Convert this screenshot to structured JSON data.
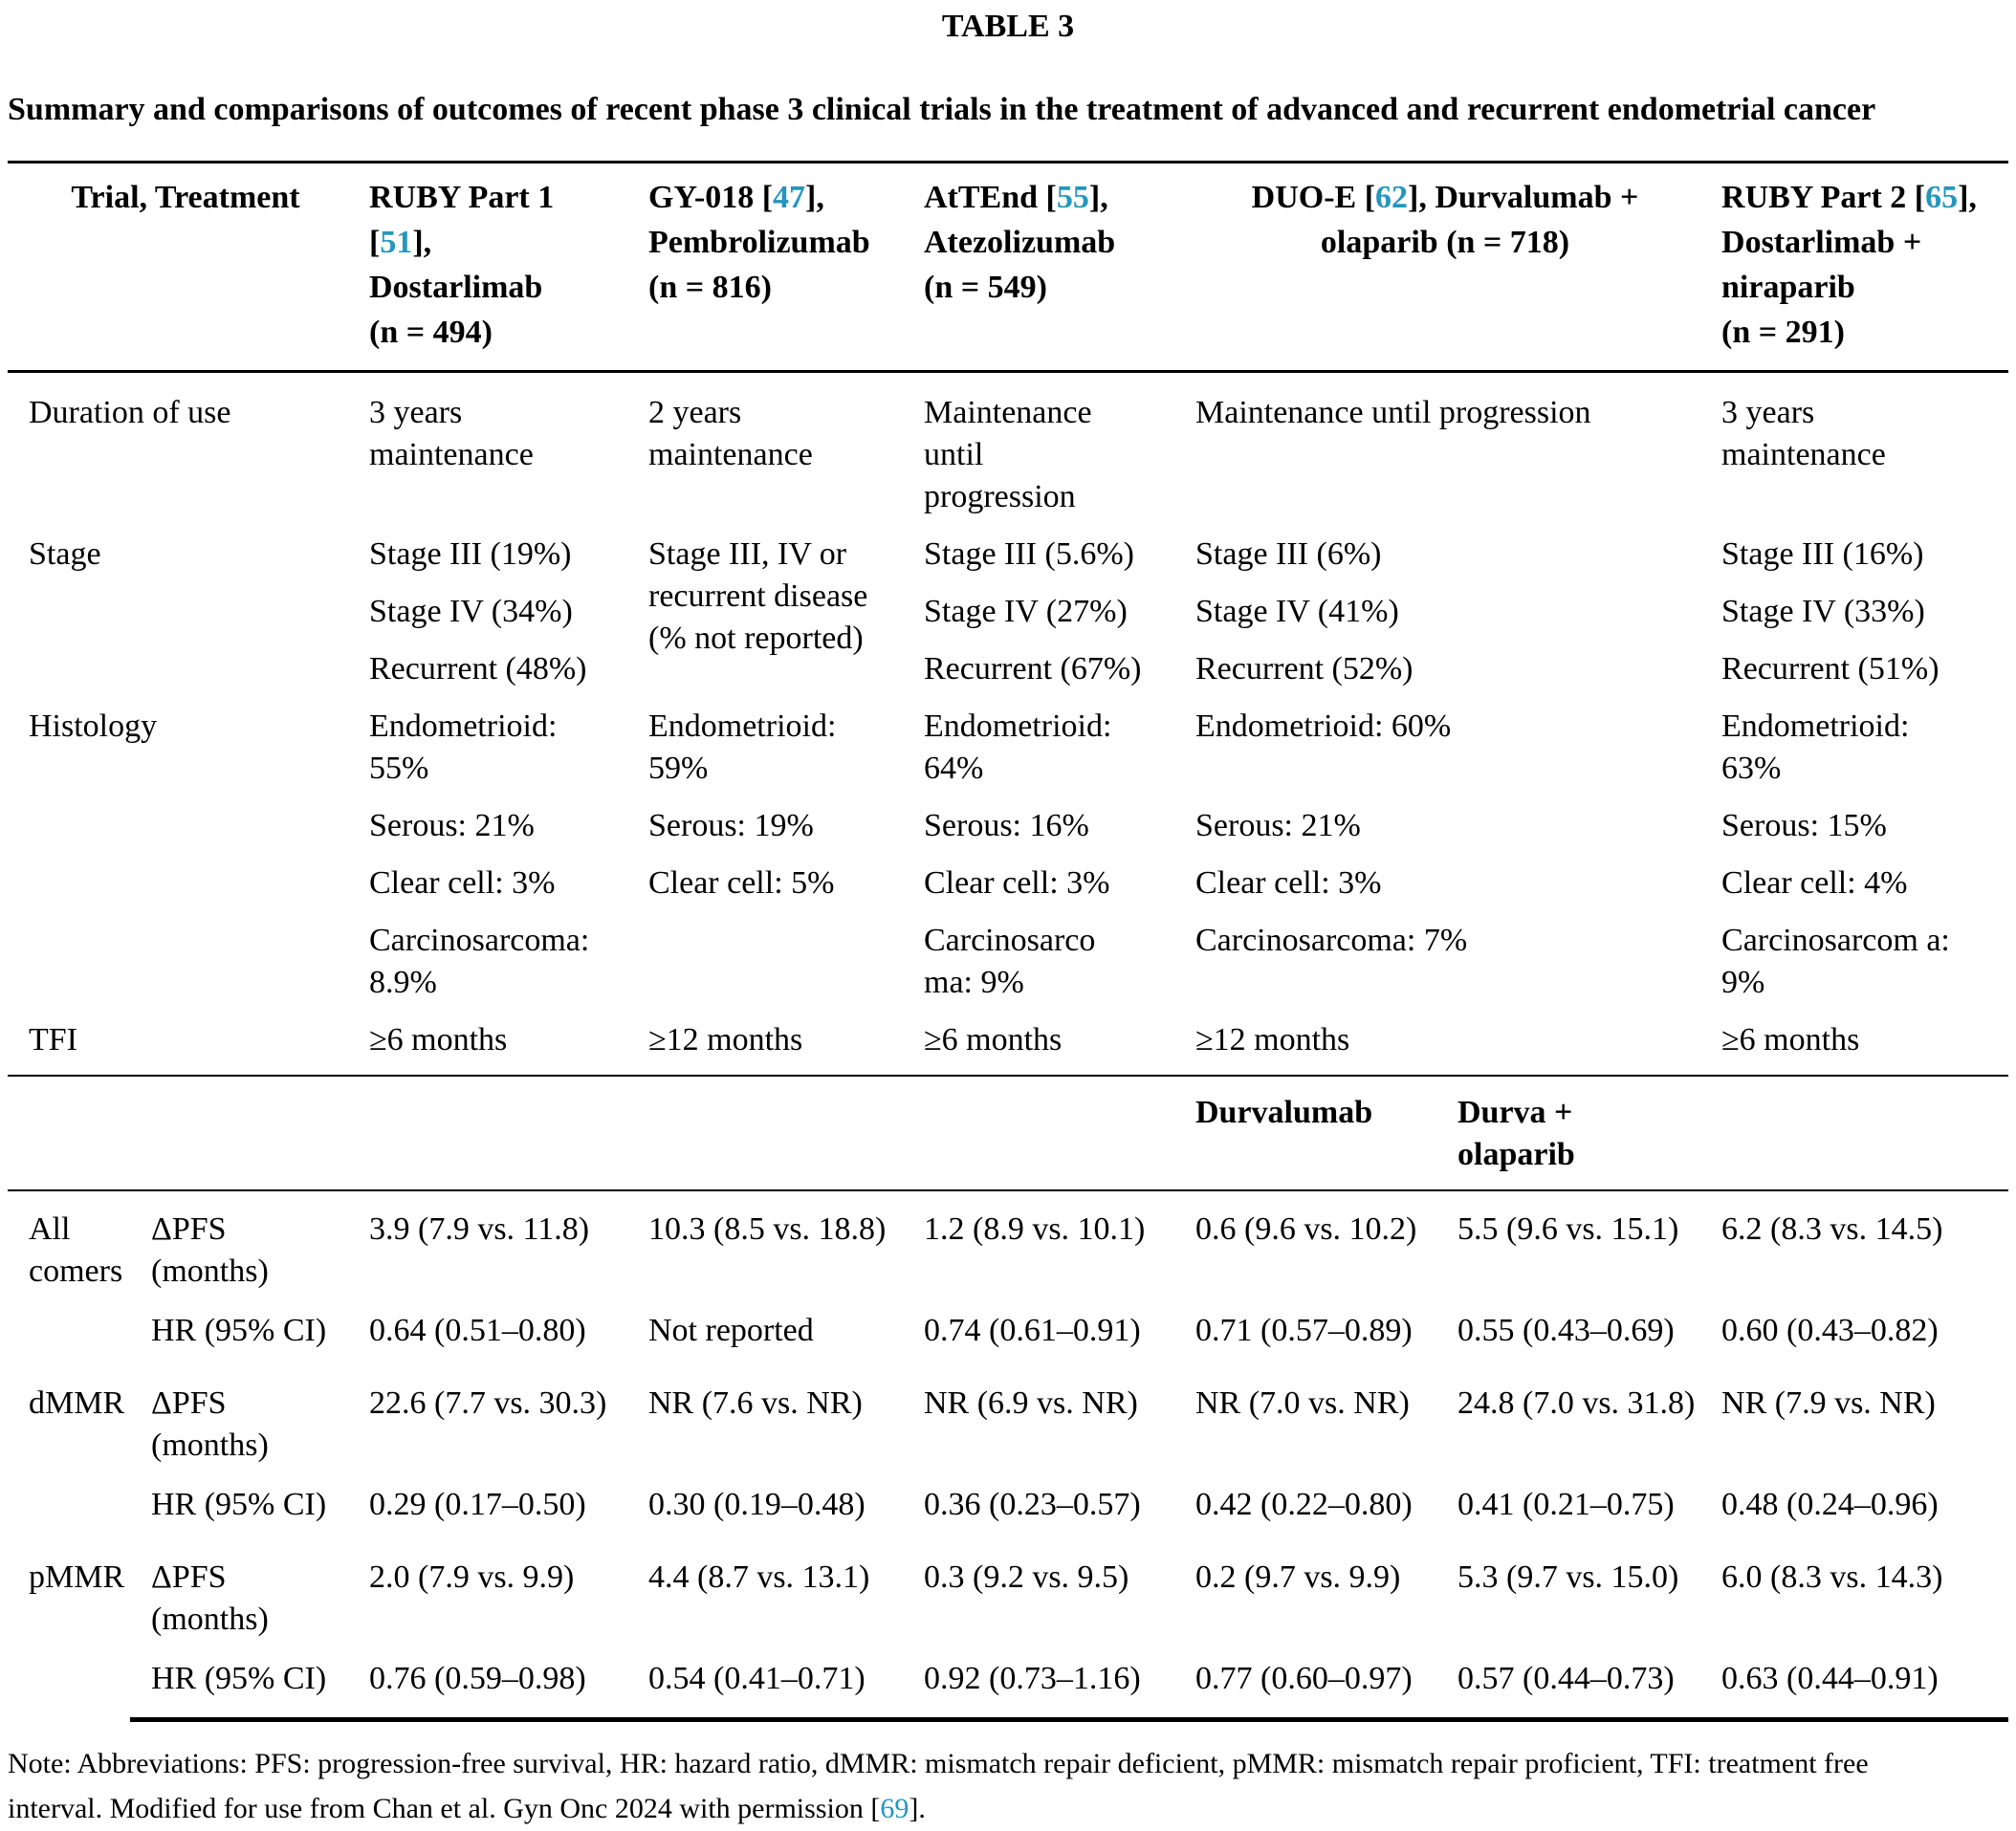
{
  "title": "TABLE 3",
  "caption": "Summary and comparisons of outcomes of recent phase 3 clinical trials in the treatment of advanced and recurrent endometrial cancer",
  "colors": {
    "reference_link": "#2596be",
    "text": "#000000",
    "rule": "#000000",
    "background": "#ffffff"
  },
  "header": {
    "label": "Trial, Treatment",
    "columns": [
      "RUBY Part 1\n[51],\nDostarlimab\n(n = 494)",
      "GY-018 [47],\nPembrolizumab\n(n = 816)",
      "AtTEnd [55],\nAtezolizumab\n(n = 549)",
      "DUO-E [62], Durvalumab +\nolaparib (n = 718)",
      "RUBY Part 2 [65],\nDostarlimab +\nniraparib\n(n = 291)"
    ]
  },
  "duration": {
    "label": "Duration of use",
    "cells": [
      "3 years\nmaintenance",
      "2 years\nmaintenance",
      "Maintenance\nuntil\nprogression",
      "Maintenance until progression",
      "3 years\nmaintenance"
    ]
  },
  "stage": {
    "label": "Stage",
    "gy018": "Stage III, IV or\nrecurrent disease\n(% not reported)",
    "rows": [
      {
        "c1": "Stage III (19%)",
        "c3": "Stage III (5.6%)",
        "c4": "Stage III (6%)",
        "c5": "Stage III (16%)"
      },
      {
        "c1": "Stage IV (34%)",
        "c3": "Stage IV (27%)",
        "c4": "Stage IV (41%)",
        "c5": "Stage IV (33%)"
      },
      {
        "c1": "Recurrent (48%)",
        "c3": "Recurrent (67%)",
        "c4": "Recurrent (52%)",
        "c5": "Recurrent (51%)"
      }
    ]
  },
  "histology": {
    "label": "Histology",
    "rows": [
      {
        "c1": "Endometrioid:\n55%",
        "c2": "Endometrioid:\n59%",
        "c3": "Endometrioid:\n64%",
        "c4": "Endometrioid: 60%",
        "c5": "Endometrioid:\n63%"
      },
      {
        "c1": "Serous: 21%",
        "c2": "Serous: 19%",
        "c3": "Serous: 16%",
        "c4": "Serous: 21%",
        "c5": "Serous: 15%"
      },
      {
        "c1": "Clear cell: 3%",
        "c2": "Clear cell: 5%",
        "c3": "Clear cell: 3%",
        "c4": "Clear cell: 3%",
        "c5": "Clear cell: 4%"
      },
      {
        "c1": "Carcinosarcoma:\n8.9%",
        "c2": "",
        "c3": "Carcinosarco\nma: 9%",
        "c4": "Carcinosarcoma: 7%",
        "c5": "Carcinosarcom a:\n9%"
      }
    ]
  },
  "tfi": {
    "label": "TFI",
    "cells": [
      "≥6 months",
      "≥12 months",
      "≥6 months",
      "≥12 months",
      "≥6 months"
    ]
  },
  "subheader": {
    "durvalumab": "Durvalumab",
    "durva_olaparib": "Durva +\nolaparib"
  },
  "outcomes": {
    "groups": [
      "All\ncomers",
      "dMMR",
      "pMMR"
    ],
    "rows": [
      {
        "metric": "ΔPFS\n(months)",
        "values": [
          "3.9 (7.9 vs. 11.8)",
          "10.3 (8.5 vs. 18.8)",
          "1.2 (8.9 vs. 10.1)",
          "0.6 (9.6 vs. 10.2)",
          "5.5 (9.6 vs. 15.1)",
          "6.2 (8.3 vs. 14.5)"
        ]
      },
      {
        "metric": "HR (95% CI)",
        "values": [
          "0.64 (0.51–0.80)",
          "Not reported",
          "0.74 (0.61–0.91)",
          "0.71 (0.57–0.89)",
          "0.55 (0.43–0.69)",
          "0.60 (0.43–0.82)"
        ]
      },
      {
        "metric": "ΔPFS\n(months)",
        "values": [
          "22.6 (7.7 vs. 30.3)",
          "NR (7.6 vs. NR)",
          "NR (6.9 vs. NR)",
          "NR (7.0 vs. NR)",
          "24.8 (7.0 vs. 31.8)",
          "NR (7.9 vs. NR)"
        ]
      },
      {
        "metric": "HR (95% CI)",
        "values": [
          "0.29 (0.17–0.50)",
          "0.30 (0.19–0.48)",
          "0.36 (0.23–0.57)",
          "0.42 (0.22–0.80)",
          "0.41 (0.21–0.75)",
          "0.48 (0.24–0.96)"
        ]
      },
      {
        "metric": "ΔPFS\n(months)",
        "values": [
          "2.0 (7.9 vs. 9.9)",
          "4.4 (8.7 vs. 13.1)",
          "0.3 (9.2 vs. 9.5)",
          "0.2 (9.7 vs. 9.9)",
          "5.3 (9.7 vs. 15.0)",
          "6.0 (8.3 vs. 14.3)"
        ]
      },
      {
        "metric": "HR (95% CI)",
        "values": [
          "0.76 (0.59–0.98)",
          "0.54 (0.41–0.71)",
          "0.92 (0.73–1.16)",
          "0.77 (0.60–0.97)",
          "0.57 (0.44–0.73)",
          "0.63 (0.44–0.91)"
        ]
      }
    ]
  },
  "note": "Note: Abbreviations: PFS: progression-free survival, HR: hazard ratio, dMMR: mismatch repair deficient, pMMR: mismatch repair proficient, TFI: treatment free\ninterval. Modified for use from Chan et al. Gyn Onc 2024 with permission [69]."
}
